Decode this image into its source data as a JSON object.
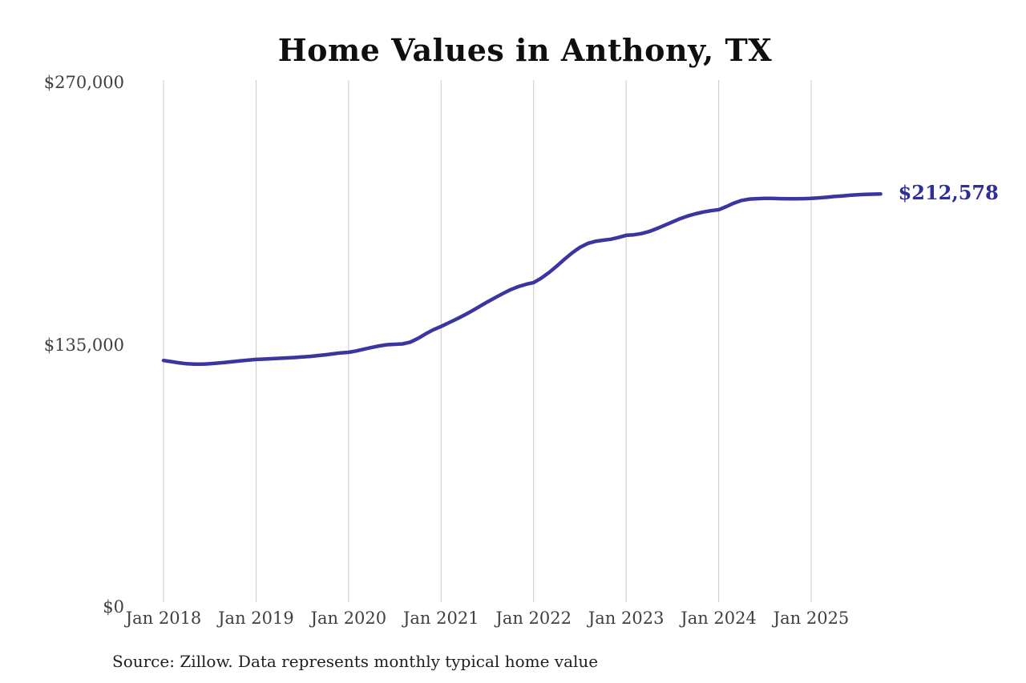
{
  "page": {
    "background": "#ffffff"
  },
  "source_note": "Source: Zillow. Data represents monthly typical home value",
  "chart_data": {
    "type": "line",
    "title": "Home Values in Anthony, TX",
    "series_name": "Monthly typical home value",
    "legend": "none",
    "grid": "vertical-only",
    "ylim": [
      0,
      270000
    ],
    "y_ticks": [
      {
        "label": "$0",
        "value": 0
      },
      {
        "label": "$135,000",
        "value": 135000
      },
      {
        "label": "$270,000",
        "value": 270000
      }
    ],
    "x_tick_labels": [
      "Jan 2018",
      "Jan 2019",
      "Jan 2020",
      "Jan 2021",
      "Jan 2022",
      "Jan 2023",
      "Jan 2024",
      "Jan 2025"
    ],
    "end_label": "$212,578",
    "end_value": 212578,
    "line_color": "#3b35a1",
    "end_label_color": "#2e2e96",
    "grid_color": "#c9c9c9",
    "axis_text_color": "#3f3f3f",
    "title_color": "#0f0f0f",
    "x": [
      "2018-01",
      "2018-02",
      "2018-03",
      "2018-04",
      "2018-05",
      "2018-06",
      "2018-07",
      "2018-08",
      "2018-09",
      "2018-10",
      "2018-11",
      "2018-12",
      "2019-01",
      "2019-02",
      "2019-03",
      "2019-04",
      "2019-05",
      "2019-06",
      "2019-07",
      "2019-08",
      "2019-09",
      "2019-10",
      "2019-11",
      "2019-12",
      "2020-01",
      "2020-02",
      "2020-03",
      "2020-04",
      "2020-05",
      "2020-06",
      "2020-07",
      "2020-08",
      "2020-09",
      "2020-10",
      "2020-11",
      "2020-12",
      "2021-01",
      "2021-02",
      "2021-03",
      "2021-04",
      "2021-05",
      "2021-06",
      "2021-07",
      "2021-08",
      "2021-09",
      "2021-10",
      "2021-11",
      "2021-12",
      "2022-01",
      "2022-02",
      "2022-03",
      "2022-04",
      "2022-05",
      "2022-06",
      "2022-07",
      "2022-08",
      "2022-09",
      "2022-10",
      "2022-11",
      "2022-12",
      "2023-01",
      "2023-02",
      "2023-03",
      "2023-04",
      "2023-05",
      "2023-06",
      "2023-07",
      "2023-08",
      "2023-09",
      "2023-10",
      "2023-11",
      "2023-12",
      "2024-01",
      "2024-02",
      "2024-03",
      "2024-04",
      "2024-05",
      "2024-06",
      "2024-07",
      "2024-08",
      "2024-09",
      "2024-10",
      "2024-11",
      "2024-12",
      "2025-01",
      "2025-02",
      "2025-03",
      "2025-04",
      "2025-05",
      "2025-06",
      "2025-07",
      "2025-08",
      "2025-09",
      "2025-10"
    ],
    "values": [
      126900,
      126300,
      125700,
      125200,
      125000,
      125000,
      125200,
      125500,
      125900,
      126300,
      126700,
      127100,
      127400,
      127600,
      127800,
      128000,
      128200,
      128400,
      128700,
      129000,
      129400,
      129800,
      130300,
      130800,
      131100,
      131800,
      132700,
      133600,
      134400,
      135000,
      135200,
      135400,
      136300,
      138200,
      140600,
      142700,
      144400,
      146300,
      148200,
      150200,
      152400,
      154700,
      157000,
      159200,
      161300,
      163300,
      164900,
      166100,
      167000,
      169300,
      172200,
      175500,
      179000,
      182300,
      185100,
      187100,
      188200,
      188800,
      189300,
      190200,
      191300,
      191600,
      192200,
      193300,
      194800,
      196500,
      198200,
      199900,
      201300,
      202400,
      203300,
      204000,
      204500,
      206100,
      207900,
      209300,
      210000,
      210200,
      210300,
      210300,
      210200,
      210100,
      210100,
      210200,
      210300,
      210600,
      210900,
      211300,
      211600,
      211900,
      212200,
      212400,
      212500,
      212578
    ]
  }
}
